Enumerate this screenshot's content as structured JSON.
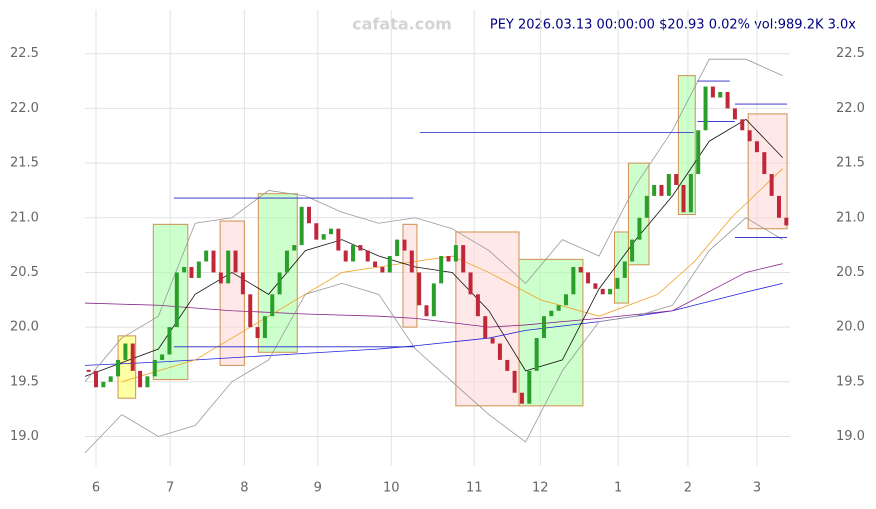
{
  "chart_data": {
    "type": "candlestick",
    "title": "PEY 2026.03.13 00:00:00 $20.93 0.02% vol:989.2K 3.0x",
    "watermark": "cafata.com",
    "closes": [
      19.6,
      19.45,
      19.5,
      19.55,
      19.7,
      19.85,
      19.6,
      19.45,
      19.55,
      19.7,
      19.75,
      20.0,
      20.5,
      20.55,
      20.45,
      20.6,
      20.7,
      20.5,
      20.4,
      20.7,
      20.5,
      20.3,
      20.0,
      19.9,
      20.1,
      20.3,
      20.5,
      20.7,
      20.75,
      21.1,
      20.95,
      20.8,
      20.85,
      20.9,
      20.7,
      20.6,
      20.75,
      20.7,
      20.6,
      20.55,
      20.5,
      20.65,
      20.8,
      20.7,
      20.5,
      20.2,
      20.1,
      20.4,
      20.65,
      20.6,
      20.75,
      20.5,
      20.3,
      20.1,
      19.9,
      19.85,
      19.7,
      19.6,
      19.4,
      19.3,
      19.6,
      19.9,
      20.1,
      20.15,
      20.2,
      20.3,
      20.55,
      20.5,
      20.4,
      20.35,
      20.3,
      20.35,
      20.45,
      20.6,
      20.8,
      21.0,
      21.2,
      21.3,
      21.2,
      21.4,
      21.3,
      21.05,
      21.4,
      21.8,
      22.2,
      22.1,
      22.15,
      22.0,
      21.9,
      21.8,
      21.7,
      21.6,
      21.4,
      21.2,
      21.0,
      20.93
    ],
    "up_color": "#2a9d2a",
    "down_color": "#c0283a",
    "xlim": [
      0,
      96
    ],
    "ylim": [
      18.73,
      22.9
    ],
    "xticks": [
      {
        "value": 1.5,
        "label": "6"
      },
      {
        "value": 11.6,
        "label": "7"
      },
      {
        "value": 21.7,
        "label": "8"
      },
      {
        "value": 31.7,
        "label": "9"
      },
      {
        "value": 41.7,
        "label": "10"
      },
      {
        "value": 53,
        "label": "11"
      },
      {
        "value": 62,
        "label": "12"
      },
      {
        "value": 72.6,
        "label": "1"
      },
      {
        "value": 82.1,
        "label": "2"
      },
      {
        "value": 91.5,
        "label": "3"
      }
    ],
    "yticks": [
      {
        "value": 19,
        "label": "19.0"
      },
      19.5,
      {
        "value": 20,
        "label": "20.0"
      },
      20.5,
      {
        "value": 21,
        "label": "21.0"
      },
      21.5,
      {
        "value": 22,
        "label": "22.0"
      },
      22.5
    ],
    "grid": true,
    "boxes": [
      {
        "x": [
          4.5,
          6.9
        ],
        "y": [
          19.35,
          19.92
        ],
        "color": "#ffff66"
      },
      {
        "x": [
          9.3,
          14.0
        ],
        "y": [
          19.52,
          20.94
        ],
        "color": "#aaffaa"
      },
      {
        "x": [
          18.4,
          21.7
        ],
        "y": [
          19.65,
          20.97
        ],
        "color": "#ffd8d8"
      },
      {
        "x": [
          23.6,
          28.9
        ],
        "y": [
          19.77,
          21.22
        ],
        "color": "#aaffaa"
      },
      {
        "x": [
          43.3,
          45.2
        ],
        "y": [
          20.0,
          20.94
        ],
        "color": "#ffd8d8"
      },
      {
        "x": [
          50.5,
          59.1
        ],
        "y": [
          19.28,
          20.87
        ],
        "color": "#ffd8d8"
      },
      {
        "x": [
          59.1,
          67.8
        ],
        "y": [
          19.28,
          20.62
        ],
        "color": "#aaffaa"
      },
      {
        "x": [
          72.1,
          74.0
        ],
        "y": [
          20.22,
          20.87
        ],
        "color": "#aaffaa"
      },
      {
        "x": [
          74.0,
          76.8
        ],
        "y": [
          20.57,
          21.5
        ],
        "color": "#aaffaa"
      },
      {
        "x": [
          80.8,
          83.1
        ],
        "y": [
          21.03,
          22.3
        ],
        "color": "#aaffaa"
      },
      {
        "x": [
          90.3,
          95.6
        ],
        "y": [
          20.9,
          21.95
        ],
        "color": "#ffd8d8"
      }
    ],
    "levels": [
      {
        "x": [
          12.1,
          44.7
        ],
        "y": 21.18
      },
      {
        "x": [
          45.6,
          82.9
        ],
        "y": 21.78
      },
      {
        "x": [
          12.1,
          44.9
        ],
        "y": 19.82
      },
      {
        "x": [
          83.4,
          87.8
        ],
        "y": 22.25
      },
      {
        "x": [
          88.5,
          95.6
        ],
        "y": 22.04
      },
      {
        "x": [
          88.5,
          95.6
        ],
        "y": 20.82
      },
      {
        "x": [
          83.4,
          88.5
        ],
        "y": 21.88
      }
    ],
    "level_color": "#2222cc",
    "lines": [
      {
        "color": "#2222dd",
        "x": [
          0,
          10,
          20,
          30,
          40,
          45,
          55,
          60,
          70,
          80,
          90,
          95
        ],
        "values": [
          19.65,
          19.68,
          19.72,
          19.76,
          19.8,
          19.83,
          19.9,
          19.97,
          20.05,
          20.15,
          20.32,
          20.4
        ]
      },
      {
        "color": "#882288",
        "x": [
          0,
          10,
          20,
          30,
          40,
          45,
          55,
          60,
          70,
          80,
          90,
          95
        ],
        "values": [
          20.22,
          20.2,
          20.15,
          20.12,
          20.1,
          20.08,
          20.0,
          20.02,
          20.08,
          20.15,
          20.5,
          20.58
        ]
      },
      {
        "color": "#f0a020",
        "x": [
          5,
          15,
          25,
          35,
          45,
          50,
          55,
          62,
          70,
          78,
          83,
          88,
          95
        ],
        "values": [
          19.5,
          19.7,
          20.1,
          20.5,
          20.6,
          20.65,
          20.5,
          20.25,
          20.1,
          20.3,
          20.6,
          21.0,
          21.45
        ]
      },
      {
        "color": "#111111",
        "x": [
          0,
          10,
          15,
          20,
          25,
          30,
          35,
          40,
          45,
          50,
          55,
          60,
          65,
          70,
          75,
          80,
          85,
          90,
          95
        ],
        "values": [
          19.55,
          19.8,
          20.3,
          20.5,
          20.3,
          20.7,
          20.8,
          20.65,
          20.55,
          20.5,
          20.15,
          19.6,
          19.7,
          20.35,
          20.8,
          21.2,
          21.7,
          21.9,
          21.55
        ]
      },
      {
        "color": "#999999",
        "x": [
          0,
          5,
          10,
          15,
          20,
          25,
          30,
          35,
          40,
          45,
          50,
          55,
          60,
          65,
          70,
          75,
          80,
          85,
          90,
          95
        ],
        "values": [
          19.5,
          19.9,
          20.1,
          20.95,
          21.0,
          21.25,
          21.2,
          21.05,
          20.95,
          21.0,
          20.9,
          20.7,
          20.4,
          20.8,
          20.65,
          21.3,
          21.8,
          22.45,
          22.45,
          22.3
        ]
      },
      {
        "color": "#999999",
        "x": [
          0,
          5,
          10,
          15,
          20,
          25,
          30,
          35,
          40,
          45,
          50,
          55,
          60,
          65,
          70,
          75,
          80,
          85,
          90,
          95
        ],
        "values": [
          18.85,
          19.2,
          19.0,
          19.1,
          19.5,
          19.7,
          20.3,
          20.4,
          20.3,
          19.8,
          19.5,
          19.2,
          18.95,
          19.6,
          20.05,
          20.1,
          20.2,
          20.7,
          21.0,
          20.8
        ]
      }
    ]
  }
}
